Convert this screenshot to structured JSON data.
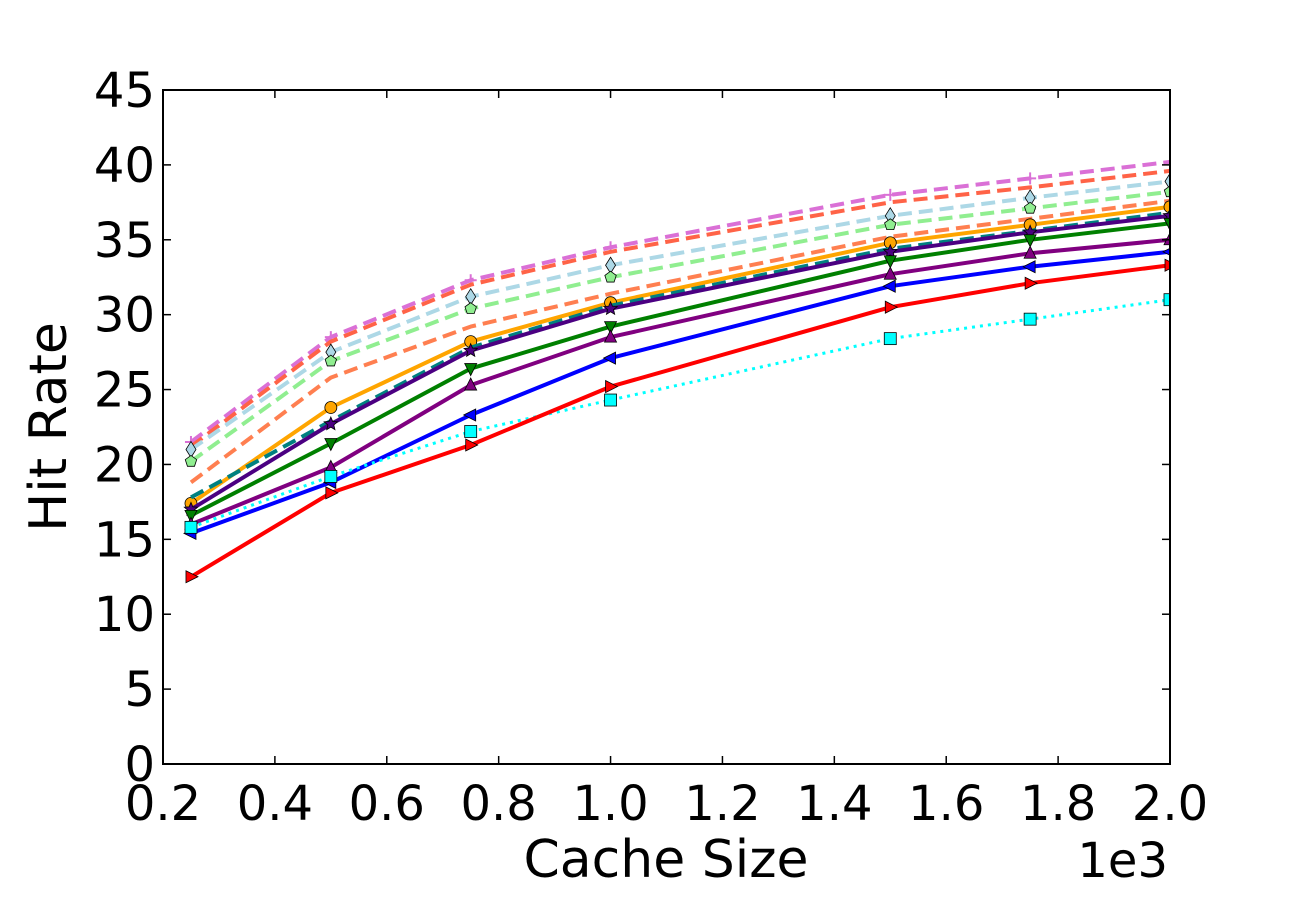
{
  "chart_data": {
    "type": "line",
    "xlabel": "Cache Size",
    "ylabel": "Hit Rate",
    "x_offset_label": "1e3",
    "xlim": [
      0.2,
      2.0
    ],
    "ylim": [
      0,
      45
    ],
    "xticks": [
      "0.2",
      "0.4",
      "0.6",
      "0.8",
      "1.0",
      "1.2",
      "1.4",
      "1.6",
      "1.8",
      "2.0"
    ],
    "yticks": [
      "0",
      "5",
      "10",
      "15",
      "20",
      "25",
      "30",
      "35",
      "40",
      "45"
    ],
    "grid": false,
    "x": [
      0.25,
      0.5,
      0.75,
      1.0,
      1.5,
      1.75,
      2.0
    ],
    "series": [
      {
        "color": "#da70d6",
        "style": "dashed",
        "marker": "plus",
        "values": [
          21.5,
          28.5,
          32.3,
          34.5,
          38.0,
          39.1,
          40.2
        ]
      },
      {
        "color": "#ff6347",
        "style": "dashed",
        "marker": "none",
        "values": [
          21.2,
          28.2,
          32.0,
          34.2,
          37.5,
          38.5,
          39.6
        ]
      },
      {
        "color": "#add8e6",
        "style": "dashed",
        "marker": "thin_diamond",
        "values": [
          21.0,
          27.5,
          31.2,
          33.3,
          36.6,
          37.8,
          38.9
        ]
      },
      {
        "color": "#90ee90",
        "style": "dashed",
        "marker": "pentagon",
        "values": [
          20.2,
          26.9,
          30.4,
          32.5,
          36.0,
          37.1,
          38.2
        ]
      },
      {
        "color": "#ff7f50",
        "style": "dashed",
        "marker": "none",
        "values": [
          18.8,
          25.8,
          29.2,
          31.4,
          35.2,
          36.4,
          37.6
        ]
      },
      {
        "color": "#ffa500",
        "style": "solid",
        "marker": "circle",
        "values": [
          17.4,
          23.8,
          28.2,
          30.8,
          34.8,
          36.0,
          37.2
        ]
      },
      {
        "color": "#008080",
        "style": "dashed",
        "marker": "none",
        "values": [
          17.8,
          22.9,
          27.8,
          30.6,
          34.4,
          35.6,
          36.8
        ]
      },
      {
        "color": "#4b0082",
        "style": "solid",
        "marker": "star",
        "values": [
          17.0,
          22.7,
          27.6,
          30.4,
          34.2,
          35.5,
          36.6
        ]
      },
      {
        "color": "#008000",
        "style": "solid",
        "marker": "triangle_down",
        "values": [
          16.6,
          21.4,
          26.4,
          29.2,
          33.6,
          35.0,
          36.1
        ]
      },
      {
        "color": "#800080",
        "style": "solid",
        "marker": "triangle_up",
        "values": [
          16.0,
          19.8,
          25.3,
          28.5,
          32.7,
          34.1,
          35.0
        ]
      },
      {
        "color": "#0000ff",
        "style": "solid",
        "marker": "triangle_left",
        "values": [
          15.4,
          18.8,
          23.3,
          27.1,
          31.9,
          33.2,
          34.2
        ]
      },
      {
        "color": "#00ffff",
        "style": "dotted",
        "marker": "square",
        "values": [
          15.8,
          19.2,
          22.2,
          24.3,
          28.4,
          29.7,
          31.0
        ]
      },
      {
        "color": "#ff0000",
        "style": "solid",
        "marker": "triangle_right",
        "values": [
          12.5,
          18.1,
          21.3,
          25.2,
          30.5,
          32.1,
          33.3
        ]
      }
    ]
  }
}
